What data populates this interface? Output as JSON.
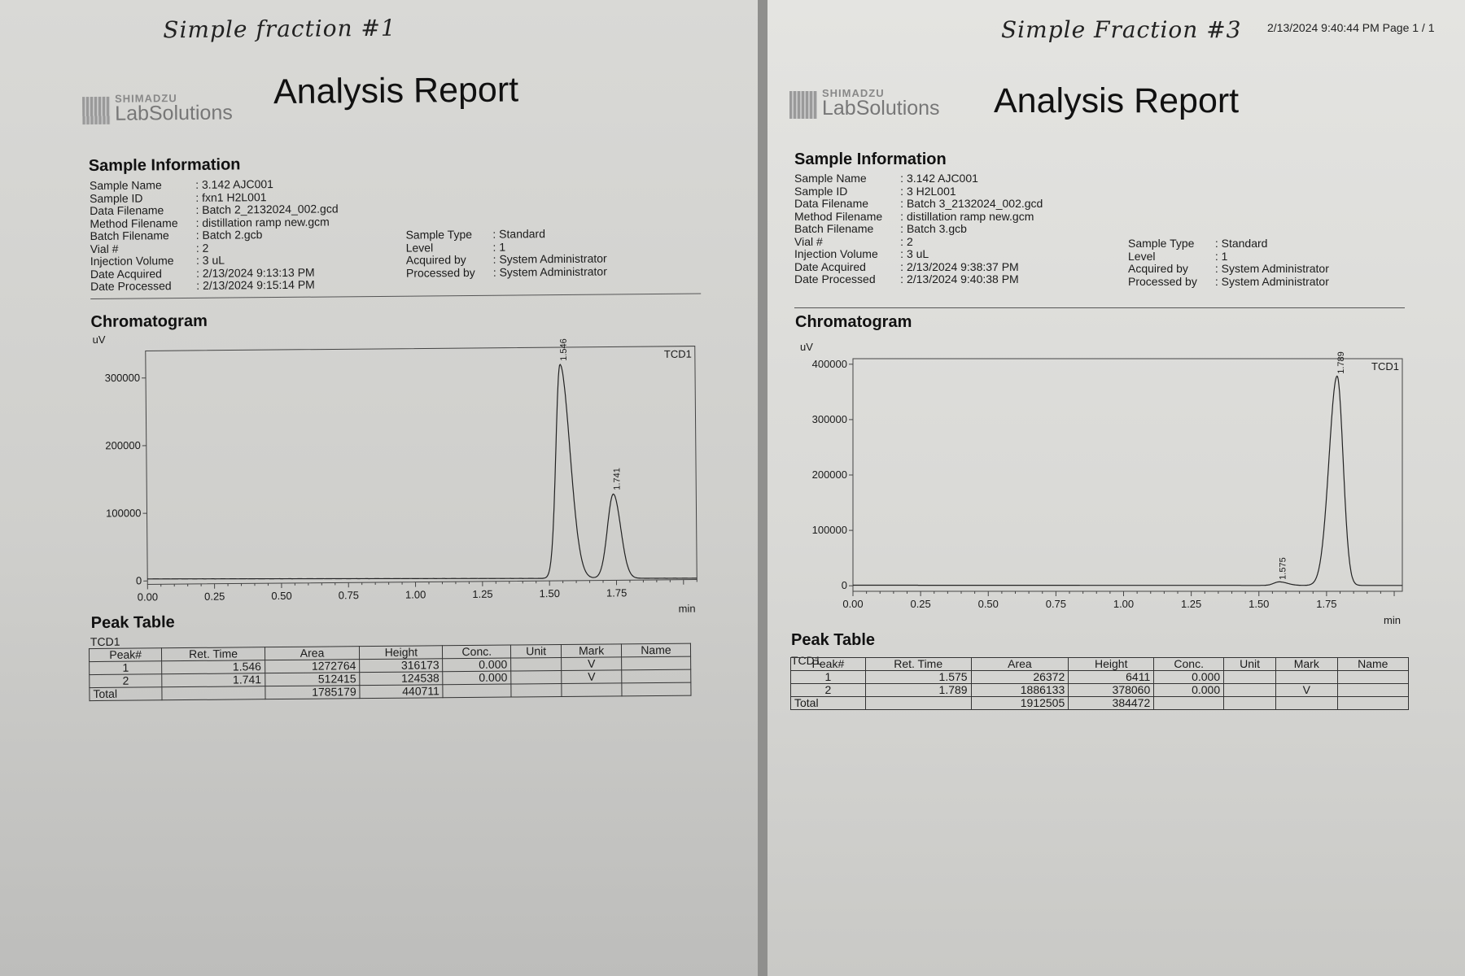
{
  "reports": [
    {
      "handwritten_title": "Simple fraction #1",
      "stamp": "",
      "logo": {
        "maker": "SHIMADZU",
        "product": "LabSolutions"
      },
      "report_title": "Analysis Report",
      "sample_info": {
        "heading": "Sample Information",
        "left": [
          [
            "Sample Name",
            ": 3.142 AJC001"
          ],
          [
            "Sample ID",
            ": fxn1 H2L001"
          ],
          [
            "Data Filename",
            ": Batch 2_2132024_002.gcd"
          ],
          [
            "Method Filename",
            ": distillation ramp new.gcm"
          ],
          [
            "Batch Filename",
            ": Batch 2.gcb"
          ],
          [
            "Vial #",
            ": 2"
          ],
          [
            "Injection Volume",
            ": 3 uL"
          ],
          [
            "Date Acquired",
            ": 2/13/2024 9:13:13 PM"
          ],
          [
            "Date Processed",
            ": 2/13/2024 9:15:14 PM"
          ]
        ],
        "right": [
          [
            "Sample Type",
            ": Standard"
          ],
          [
            "Level",
            ": 1"
          ],
          [
            "Acquired by",
            ": System Administrator"
          ],
          [
            "Processed by",
            ": System Administrator"
          ]
        ]
      },
      "chromatogram_heading": "Chromatogram",
      "peak_table": {
        "heading": "Peak Table",
        "detector": "TCD1",
        "columns": [
          "Peak#",
          "Ret. Time",
          "Area",
          "Height",
          "Conc.",
          "Unit",
          "Mark",
          "Name"
        ],
        "rows": [
          [
            "1",
            "1.546",
            "1272764",
            "316173",
            "0.000",
            "",
            "V",
            ""
          ],
          [
            "2",
            "1.741",
            "512415",
            "124538",
            "0.000",
            "",
            "V",
            ""
          ]
        ],
        "total": [
          "Total",
          "",
          "1785179",
          "440711",
          "",
          "",
          "",
          ""
        ]
      }
    },
    {
      "handwritten_title": "Simple Fraction #3",
      "stamp": "2/13/2024 9:40:44 PM  Page 1 / 1",
      "logo": {
        "maker": "SHIMADZU",
        "product": "LabSolutions"
      },
      "report_title": "Analysis Report",
      "sample_info": {
        "heading": "Sample Information",
        "left": [
          [
            "Sample Name",
            ": 3.142 AJC001"
          ],
          [
            "Sample ID",
            ": 3 H2L001"
          ],
          [
            "Data Filename",
            ": Batch 3_2132024_002.gcd"
          ],
          [
            "Method Filename",
            ": distillation ramp new.gcm"
          ],
          [
            "Batch Filename",
            ": Batch 3.gcb"
          ],
          [
            "Vial #",
            ": 2"
          ],
          [
            "Injection Volume",
            ": 3 uL"
          ],
          [
            "Date Acquired",
            ": 2/13/2024 9:38:37 PM"
          ],
          [
            "Date Processed",
            ": 2/13/2024 9:40:38 PM"
          ]
        ],
        "right": [
          [
            "Sample Type",
            ": Standard"
          ],
          [
            "Level",
            ": 1"
          ],
          [
            "Acquired by",
            ": System Administrator"
          ],
          [
            "Processed by",
            ": System Administrator"
          ]
        ]
      },
      "chromatogram_heading": "Chromatogram",
      "peak_table": {
        "heading": "Peak Table",
        "detector": "TCD1",
        "columns": [
          "Peak#",
          "Ret. Time",
          "Area",
          "Height",
          "Conc.",
          "Unit",
          "Mark",
          "Name"
        ],
        "rows": [
          [
            "1",
            "1.575",
            "26372",
            "6411",
            "0.000",
            "",
            "",
            ""
          ],
          [
            "2",
            "1.789",
            "1886133",
            "378060",
            "0.000",
            "",
            "V",
            ""
          ]
        ],
        "total": [
          "Total",
          "",
          "1912505",
          "384472",
          "",
          "",
          "",
          ""
        ]
      }
    }
  ],
  "chart_data": [
    {
      "type": "line",
      "title": "",
      "xlabel": "min",
      "ylabel": "uV",
      "legend": "TCD1",
      "xlim": [
        0,
        2.05
      ],
      "ylim": [
        -5000,
        340000
      ],
      "xticks": [
        "0.00",
        "0.25",
        "0.50",
        "0.75",
        "1.00",
        "1.25",
        "1.50",
        "1.75"
      ],
      "yticks": [
        "0",
        "100000",
        "200000",
        "300000"
      ],
      "series": [
        {
          "name": "TCD1",
          "peaks": [
            {
              "rt": 1.546,
              "label": "1.546",
              "height": 316173,
              "sigma_left": 0.018,
              "sigma_right": 0.034
            },
            {
              "rt": 1.741,
              "label": "1.741",
              "height": 124538,
              "sigma_left": 0.023,
              "sigma_right": 0.026
            }
          ],
          "baseline_start": 3000,
          "baseline_end": -3000
        }
      ]
    },
    {
      "type": "line",
      "title": "",
      "xlabel": "min",
      "ylabel": "uV",
      "legend": "TCD1",
      "xlim": [
        0,
        2.03
      ],
      "ylim": [
        -10000,
        410000
      ],
      "xticks": [
        "0.00",
        "0.25",
        "0.50",
        "0.75",
        "1.00",
        "1.25",
        "1.50",
        "1.75"
      ],
      "yticks": [
        "0",
        "100000",
        "200000",
        "300000",
        "400000"
      ],
      "series": [
        {
          "name": "TCD1",
          "peaks": [
            {
              "rt": 1.575,
              "label": "1.575",
              "height": 6411,
              "sigma_left": 0.02,
              "sigma_right": 0.03
            },
            {
              "rt": 1.789,
              "label": "1.789",
              "height": 378060,
              "sigma_left": 0.03,
              "sigma_right": 0.022
            }
          ],
          "baseline_start": 1000,
          "baseline_end": 500
        }
      ]
    }
  ]
}
